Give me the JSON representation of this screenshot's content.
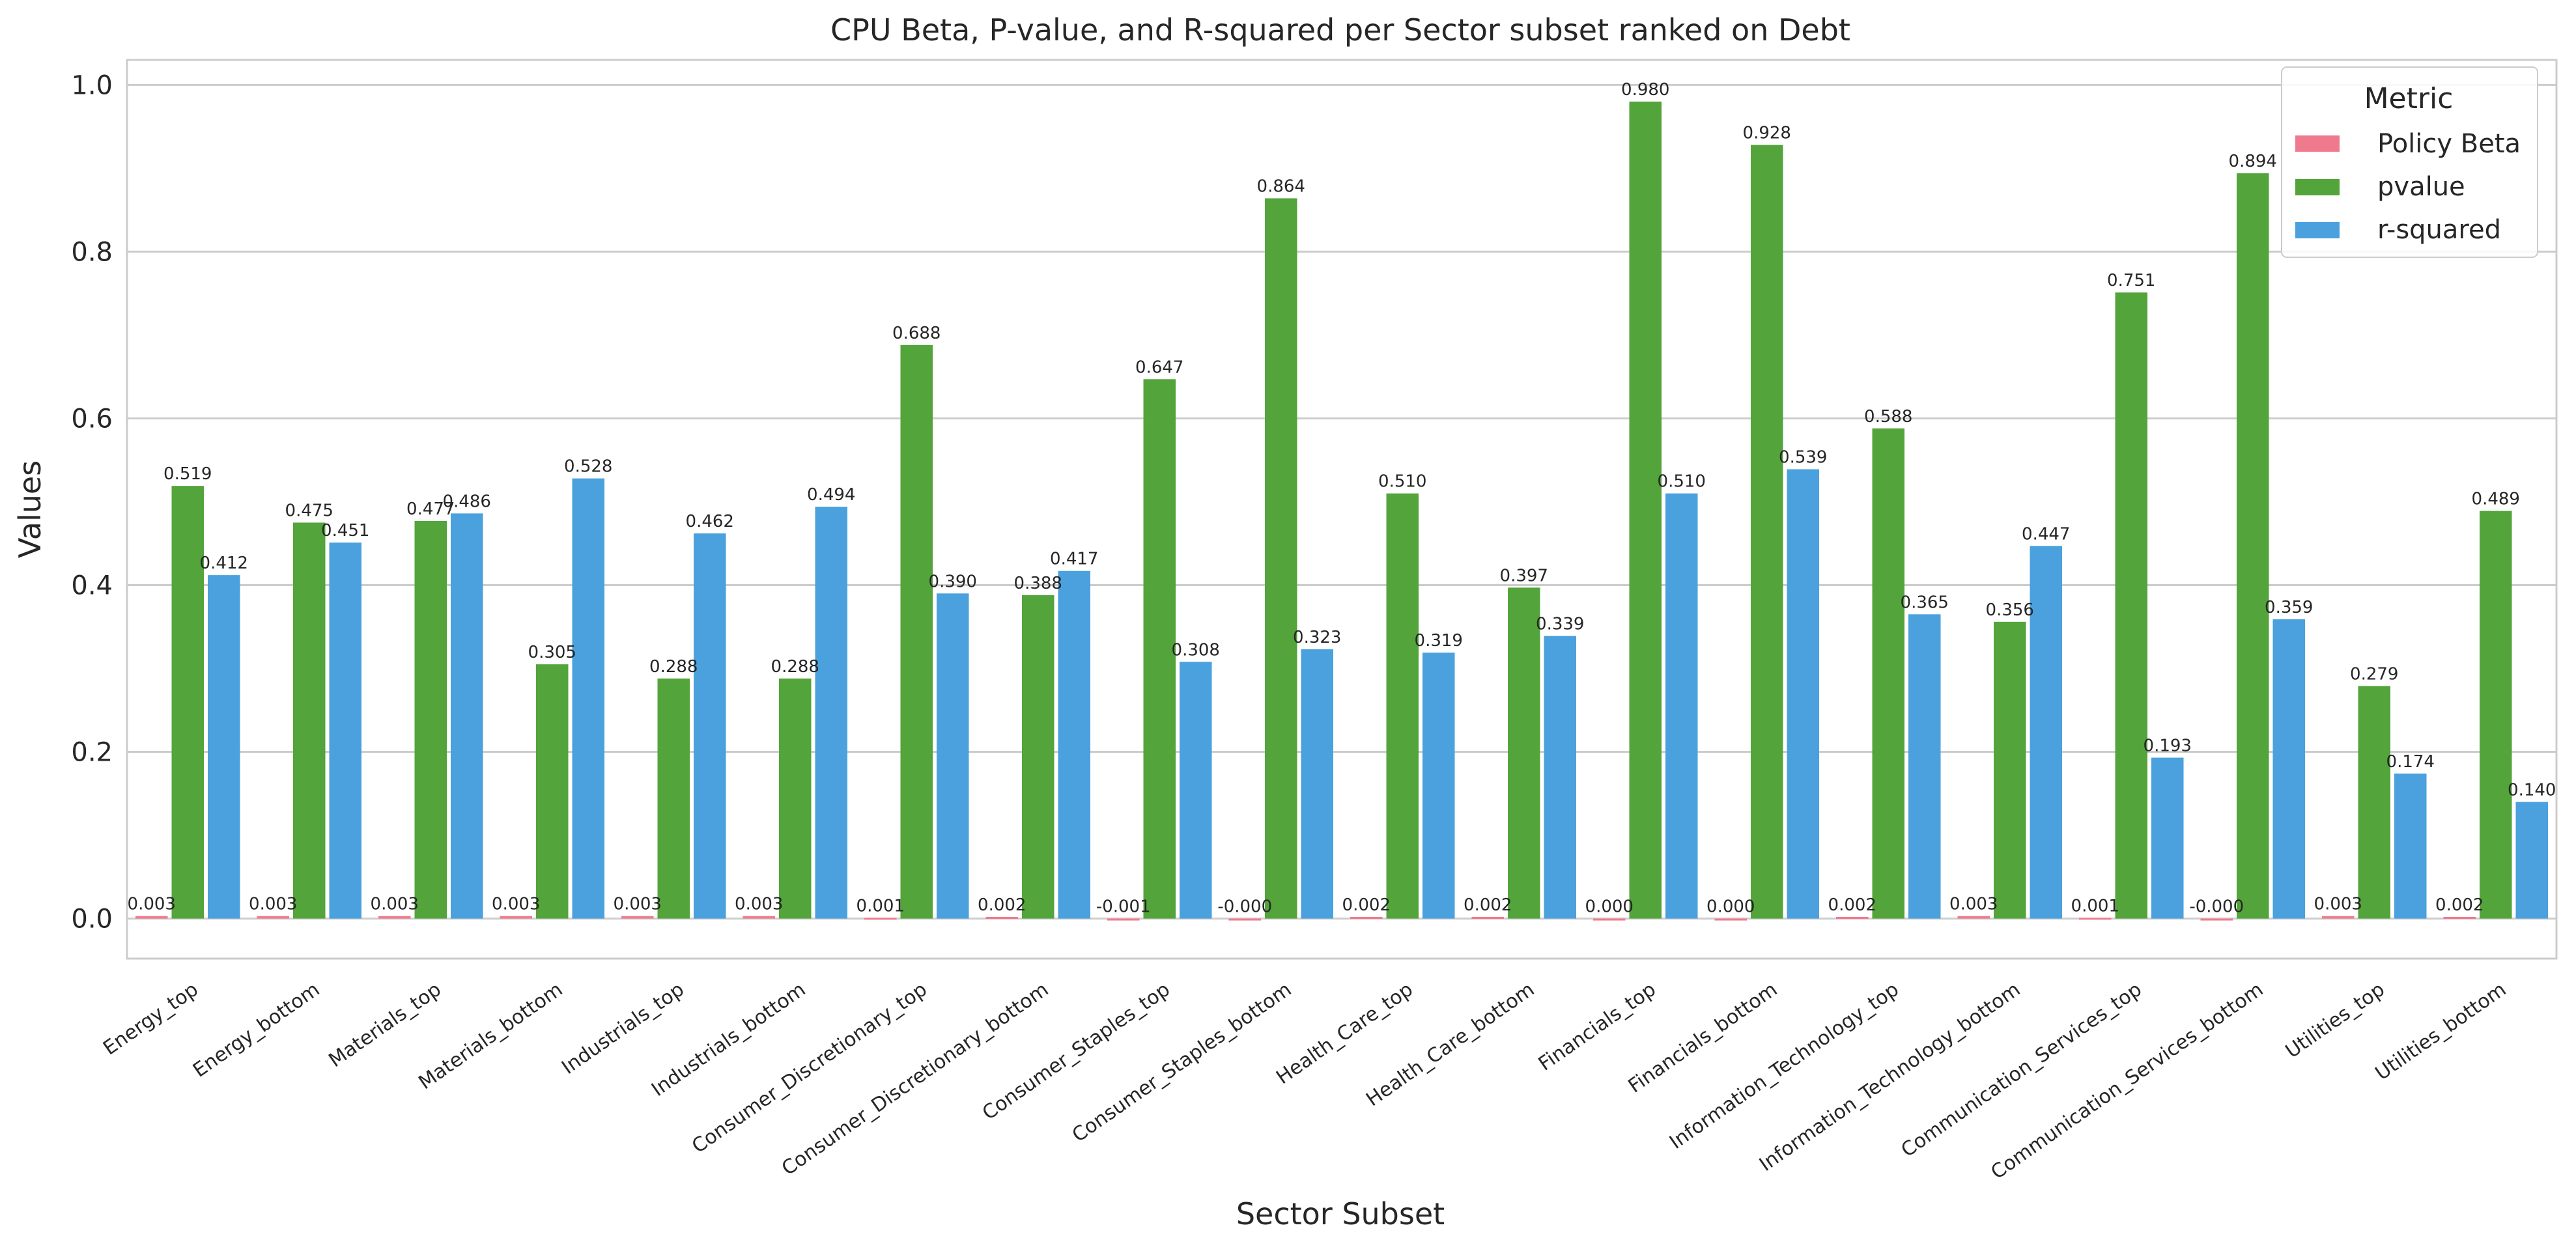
{
  "chart_data": {
    "type": "bar",
    "title": "CPU Beta, P-value, and R-squared per Sector subset ranked on Debt",
    "xlabel": "Sector Subset",
    "ylabel": "Values",
    "ylim": [
      -0.048,
      1.03
    ],
    "yticks": [
      "0.0",
      "0.2",
      "0.4",
      "0.6",
      "0.8",
      "1.0"
    ],
    "grid": true,
    "legend": {
      "title": "Metric",
      "position": "top-right"
    },
    "categories": [
      "Energy_top",
      "Energy_bottom",
      "Materials_top",
      "Materials_bottom",
      "Industrials_top",
      "Industrials_bottom",
      "Consumer_Discretionary_top",
      "Consumer_Discretionary_bottom",
      "Consumer_Staples_top",
      "Consumer_Staples_bottom",
      "Health_Care_top",
      "Health_Care_bottom",
      "Financials_top",
      "Financials_bottom",
      "Information_Technology_top",
      "Information_Technology_bottom",
      "Communication_Services_top",
      "Communication_Services_bottom",
      "Utilities_top",
      "Utilities_bottom"
    ],
    "series": [
      {
        "name": "Policy Beta",
        "color": "#f07a8d",
        "values": [
          0.003,
          0.003,
          0.003,
          0.003,
          0.003,
          0.003,
          0.001,
          0.002,
          -0.001,
          -0.0,
          0.002,
          0.002,
          0.0,
          0.0,
          0.002,
          0.003,
          0.001,
          -0.0,
          0.003,
          0.002
        ],
        "labels": [
          "0.003",
          "0.003",
          "0.003",
          "0.003",
          "0.003",
          "0.003",
          "0.001",
          "0.002",
          "-0.001",
          "-0.000",
          "0.002",
          "0.002",
          "0.000",
          "0.000",
          "0.002",
          "0.003",
          "0.001",
          "-0.000",
          "0.003",
          "0.002"
        ]
      },
      {
        "name": "pvalue",
        "color": "#53a43b",
        "values": [
          0.519,
          0.475,
          0.477,
          0.305,
          0.288,
          0.288,
          0.688,
          0.388,
          0.647,
          0.864,
          0.51,
          0.397,
          0.98,
          0.928,
          0.588,
          0.356,
          0.751,
          0.894,
          0.279,
          0.489
        ],
        "labels": [
          "0.519",
          "0.475",
          "0.477",
          "0.305",
          "0.288",
          "0.288",
          "0.688",
          "0.388",
          "0.647",
          "0.864",
          "0.510",
          "0.397",
          "0.980",
          "0.928",
          "0.588",
          "0.356",
          "0.751",
          "0.894",
          "0.279",
          "0.489"
        ]
      },
      {
        "name": "r-squared",
        "color": "#4aa1dd",
        "values": [
          0.412,
          0.451,
          0.486,
          0.528,
          0.462,
          0.494,
          0.39,
          0.417,
          0.308,
          0.323,
          0.319,
          0.339,
          0.51,
          0.539,
          0.365,
          0.447,
          0.193,
          0.359,
          0.174,
          0.14
        ],
        "labels": [
          "0.412",
          "0.451",
          "0.486",
          "0.528",
          "0.462",
          "0.494",
          "0.390",
          "0.417",
          "0.308",
          "0.323",
          "0.319",
          "0.339",
          "0.510",
          "0.539",
          "0.365",
          "0.447",
          "0.193",
          "0.359",
          "0.174",
          "0.140"
        ]
      }
    ]
  }
}
